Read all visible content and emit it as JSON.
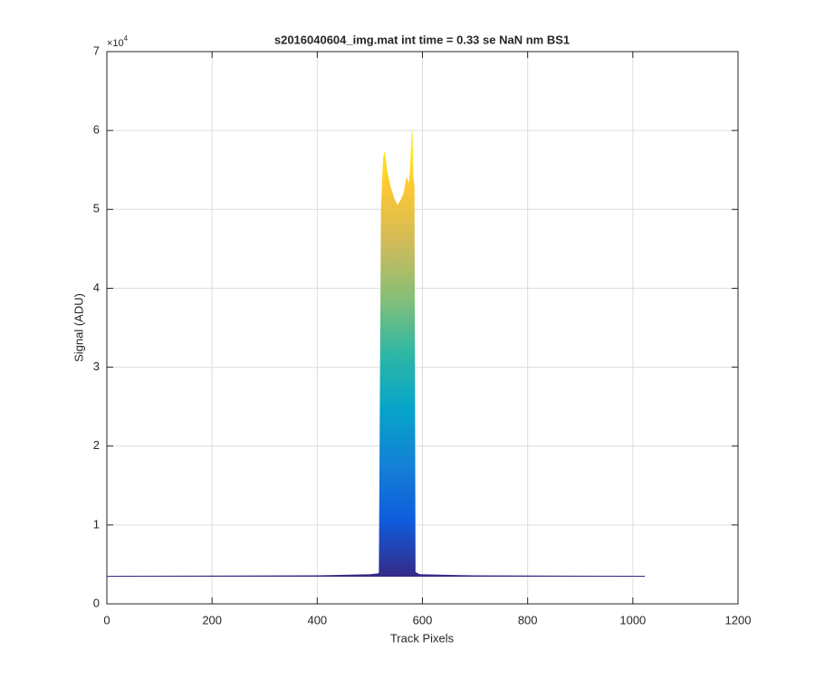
{
  "chart_data": {
    "type": "area",
    "title": "s2016040604_img.mat int time = 0.33 se  NaN nm BS1",
    "x_label": "Track Pixels",
    "y_label": "Signal (ADU)",
    "y_multiplier": {
      "base": "×10",
      "exponent": "4"
    },
    "x": [
      0,
      400,
      500,
      515,
      518,
      522,
      526,
      528,
      532,
      538,
      545,
      552,
      558,
      565,
      570,
      575,
      578,
      580,
      582,
      584,
      586,
      595,
      700,
      1023
    ],
    "values": [
      3500,
      3550,
      3700,
      3800,
      3900,
      50000,
      56500,
      57200,
      55000,
      53000,
      51500,
      50500,
      51000,
      52000,
      54000,
      53000,
      56000,
      60000,
      54000,
      53000,
      4000,
      3700,
      3550,
      3500
    ],
    "colormap": [
      "#352a87",
      "#0f5cdd",
      "#1481d6",
      "#06a4ca",
      "#2eb7a4",
      "#87bf77",
      "#d1bb59",
      "#fec832",
      "#f9fb0e"
    ],
    "xlim": [
      0,
      1200
    ],
    "xticks": [
      0,
      200,
      400,
      600,
      800,
      1000,
      1200
    ],
    "ylim": [
      0,
      70000
    ],
    "yticks": [
      {
        "value": 0,
        "label": "0"
      },
      {
        "value": 10000,
        "label": "1"
      },
      {
        "value": 20000,
        "label": "2"
      },
      {
        "value": 30000,
        "label": "3"
      },
      {
        "value": 40000,
        "label": "4"
      },
      {
        "value": 50000,
        "label": "5"
      },
      {
        "value": 60000,
        "label": "6"
      },
      {
        "value": 70000,
        "label": "7"
      }
    ],
    "grid": true
  }
}
